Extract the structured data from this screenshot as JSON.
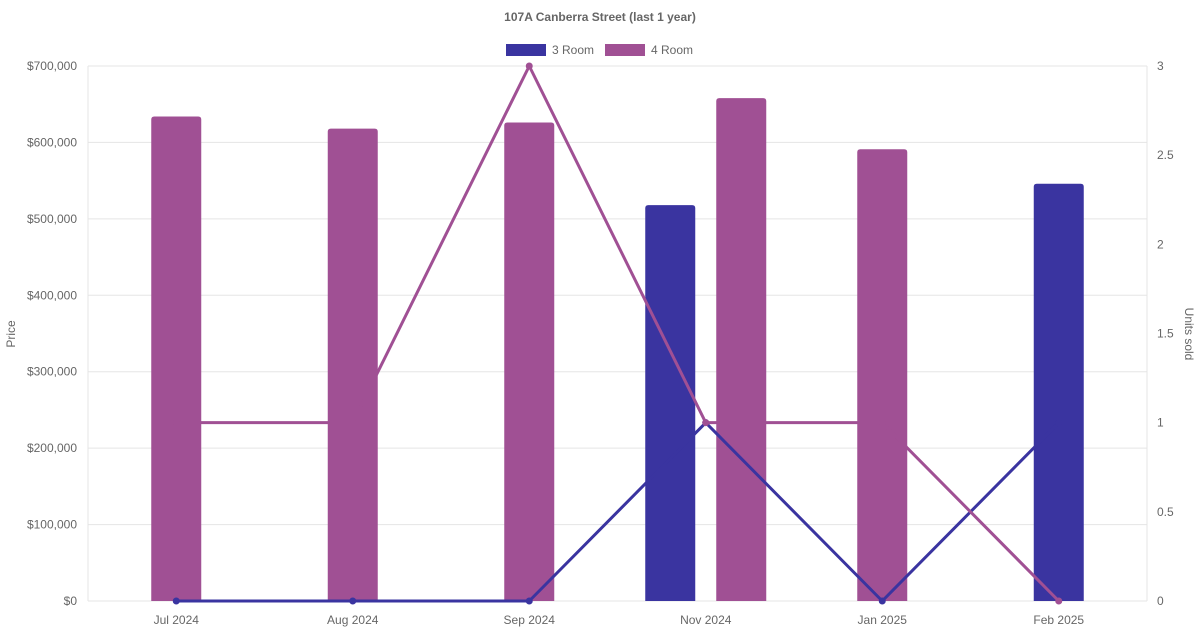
{
  "chart_data": {
    "type": "bar",
    "title": "107A Canberra Street (last 1 year)",
    "categories": [
      "Jul 2024",
      "Aug 2024",
      "Sep 2024",
      "Nov 2024",
      "Jan 2025",
      "Feb 2025"
    ],
    "ylabel": "Price",
    "y2label": "Units sold",
    "ylim": [
      0,
      700000
    ],
    "y2lim": [
      0,
      3
    ],
    "yticks": [
      "$0",
      "$100,000",
      "$200,000",
      "$300,000",
      "$400,000",
      "$500,000",
      "$600,000",
      "$700,000"
    ],
    "y2ticks": [
      "0",
      "0.5",
      "1",
      "1.5",
      "2",
      "2.5",
      "3"
    ],
    "grid": true,
    "legend_position": "top",
    "series": [
      {
        "name": "3 Room",
        "color": "#3a34a0",
        "price": [
          null,
          null,
          null,
          518000,
          null,
          546000
        ],
        "units_sold": [
          0,
          0,
          0,
          1,
          0,
          1
        ]
      },
      {
        "name": "4 Room",
        "color": "#a05094",
        "price": [
          634000,
          618000,
          626000,
          658000,
          591000,
          null
        ],
        "units_sold": [
          1,
          1,
          3,
          1,
          1,
          0
        ]
      }
    ]
  }
}
